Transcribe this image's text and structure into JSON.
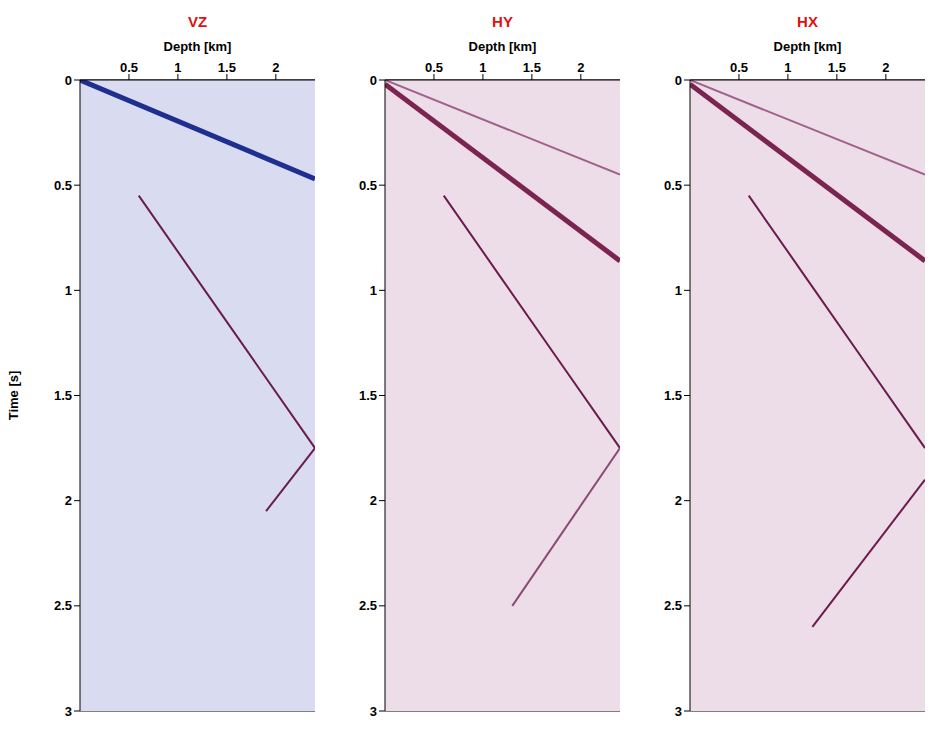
{
  "chart_data": [
    {
      "type": "line",
      "title": "VZ",
      "x_label": "Depth [km]",
      "y_label": "Time [s]",
      "xlim": [
        0,
        2.4
      ],
      "xticks": [
        0.5,
        1,
        1.5,
        2
      ],
      "ylim": [
        0,
        3
      ],
      "yticks": [
        0,
        0.5,
        1,
        1.5,
        2,
        2.5,
        3
      ],
      "grid": true,
      "series": [
        {
          "color": "#1f2f8f",
          "x": [
            0,
            2.4
          ],
          "values": [
            0,
            0.47
          ]
        },
        {
          "color": "#6a1c4a",
          "x": [
            0.6,
            1.2,
            1.8,
            2.4
          ],
          "values": [
            0.55,
            0.95,
            1.35,
            1.75
          ]
        },
        {
          "color": "#6a1c4a",
          "x": [
            2.4,
            1.9
          ],
          "values": [
            1.75,
            2.05
          ]
        }
      ]
    },
    {
      "type": "line",
      "title": "HY",
      "x_label": "Depth [km]",
      "xlim": [
        0,
        2.4
      ],
      "xticks": [
        0.5,
        1,
        1.5,
        2
      ],
      "ylim": [
        0,
        3
      ],
      "yticks": [
        0,
        0.5,
        1,
        1.5,
        2,
        2.5,
        3
      ],
      "grid": true,
      "series": [
        {
          "color": "#7b2450",
          "x": [
            0,
            2.4
          ],
          "values": [
            0.02,
            0.86
          ]
        },
        {
          "color": "#a0608a",
          "x": [
            0,
            2.4
          ],
          "values": [
            0,
            0.45
          ]
        },
        {
          "color": "#6a1c4a",
          "x": [
            0.6,
            1.2,
            1.8,
            2.4
          ],
          "values": [
            0.55,
            0.95,
            1.35,
            1.75
          ]
        },
        {
          "color": "#8a4a72",
          "x": [
            2.4,
            1.3
          ],
          "values": [
            1.75,
            2.5
          ]
        }
      ]
    },
    {
      "type": "line",
      "title": "HX",
      "x_label": "Depth [km]",
      "xlim": [
        0,
        2.4
      ],
      "xticks": [
        0.5,
        1,
        1.5,
        2
      ],
      "ylim": [
        0,
        3
      ],
      "yticks": [
        0,
        0.5,
        1,
        1.5,
        2,
        2.5,
        3
      ],
      "grid": true,
      "series": [
        {
          "color": "#7b2450",
          "x": [
            0,
            2.4
          ],
          "values": [
            0.02,
            0.86
          ]
        },
        {
          "color": "#a0608a",
          "x": [
            0,
            2.4
          ],
          "values": [
            0,
            0.45
          ]
        },
        {
          "color": "#6a1c4a",
          "x": [
            0.6,
            1.2,
            1.8,
            2.4
          ],
          "values": [
            0.55,
            0.95,
            1.35,
            1.75
          ]
        },
        {
          "color": "#6a1c4a",
          "x": [
            2.4,
            1.25
          ],
          "values": [
            1.9,
            2.6
          ]
        }
      ]
    }
  ]
}
